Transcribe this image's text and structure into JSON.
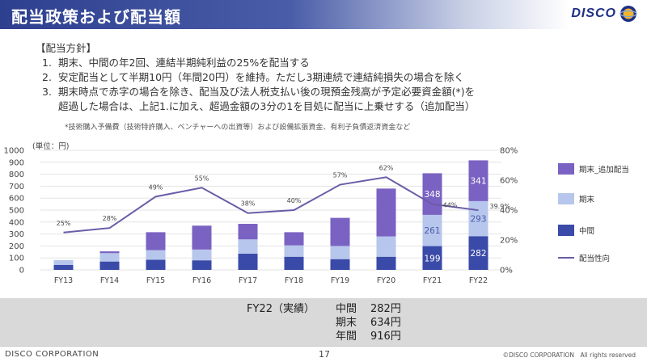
{
  "header": {
    "title": "配当政策および配当額",
    "logo_text": "DISCO"
  },
  "policy": {
    "heading": "【配当方針】",
    "items": [
      {
        "num": "1.",
        "text": "期末、中間の年2回、連結半期純利益の25%を配当する"
      },
      {
        "num": "2.",
        "text": "安定配当として半期10円（年間20円）を維持。ただし3期連続で連結純損失の場合を除く"
      },
      {
        "num": "3.",
        "text": "期末時点で赤字の場合を除き、配当及び法人税支払い後の現預金残高が予定必要資金額(*)を"
      }
    ],
    "item3_cont": "超過した場合は、上記1.に加え、超過金額の3分の1を目処に配当に上乗せする（追加配当）",
    "note": "*技術購入予備費（技術特許購入、ベンチャーへの出資等）および設備拡張資金、有利子負債返済資金など"
  },
  "chart_data": {
    "type": "bar",
    "unit_label": "(単位：円)",
    "categories": [
      "FY13",
      "FY14",
      "FY15",
      "FY16",
      "FY17",
      "FY18",
      "FY19",
      "FY20",
      "FY21",
      "FY22"
    ],
    "series": [
      {
        "name": "中間",
        "color": "#3a4aa8",
        "values": [
          42,
          70,
          85,
          80,
          135,
          110,
          90,
          110,
          199,
          282
        ]
      },
      {
        "name": "期末",
        "color": "#b7c6ec",
        "values": [
          40,
          70,
          80,
          90,
          120,
          95,
          110,
          170,
          261,
          293
        ]
      },
      {
        "name": "期末_追加配当",
        "color": "#7a62c2",
        "values": [
          0,
          15,
          150,
          200,
          130,
          110,
          235,
          400,
          348,
          341
        ]
      }
    ],
    "line": {
      "name": "配当性向",
      "color": "#6a5ca8",
      "values": [
        25,
        28,
        49,
        55,
        38,
        40,
        57,
        62,
        44,
        39.9
      ],
      "labels": [
        "25%",
        "28%",
        "49%",
        "55%",
        "38%",
        "40%",
        "57%",
        "62%",
        "44%",
        "39.9%"
      ]
    },
    "bar_value_labels": [
      {
        "series": 0,
        "index": 8,
        "text": "199"
      },
      {
        "series": 1,
        "index": 8,
        "text": "261"
      },
      {
        "series": 2,
        "index": 8,
        "text": "348"
      },
      {
        "series": 0,
        "index": 9,
        "text": "282"
      },
      {
        "series": 1,
        "index": 9,
        "text": "293"
      },
      {
        "series": 2,
        "index": 9,
        "text": "341"
      }
    ],
    "y_left": {
      "min": 0,
      "max": 1000,
      "ticks": [
        "0",
        "100",
        "200",
        "300",
        "400",
        "500",
        "600",
        "700",
        "800",
        "900",
        "1000"
      ]
    },
    "y_right": {
      "min": 0,
      "max": 80,
      "ticks": [
        "0%",
        "20%",
        "40%",
        "60%",
        "80%"
      ]
    },
    "legend_position": "right"
  },
  "summary": {
    "title": "FY22（実績）",
    "rows": [
      {
        "label": "中間",
        "value": "282円"
      },
      {
        "label": "期末",
        "value": "634円"
      },
      {
        "label": "年間",
        "value": "916円"
      }
    ]
  },
  "footer": {
    "left": "DISCO CORPORATION",
    "page": "17",
    "right": "©DISCO CORPORATION　All rights reserved"
  }
}
